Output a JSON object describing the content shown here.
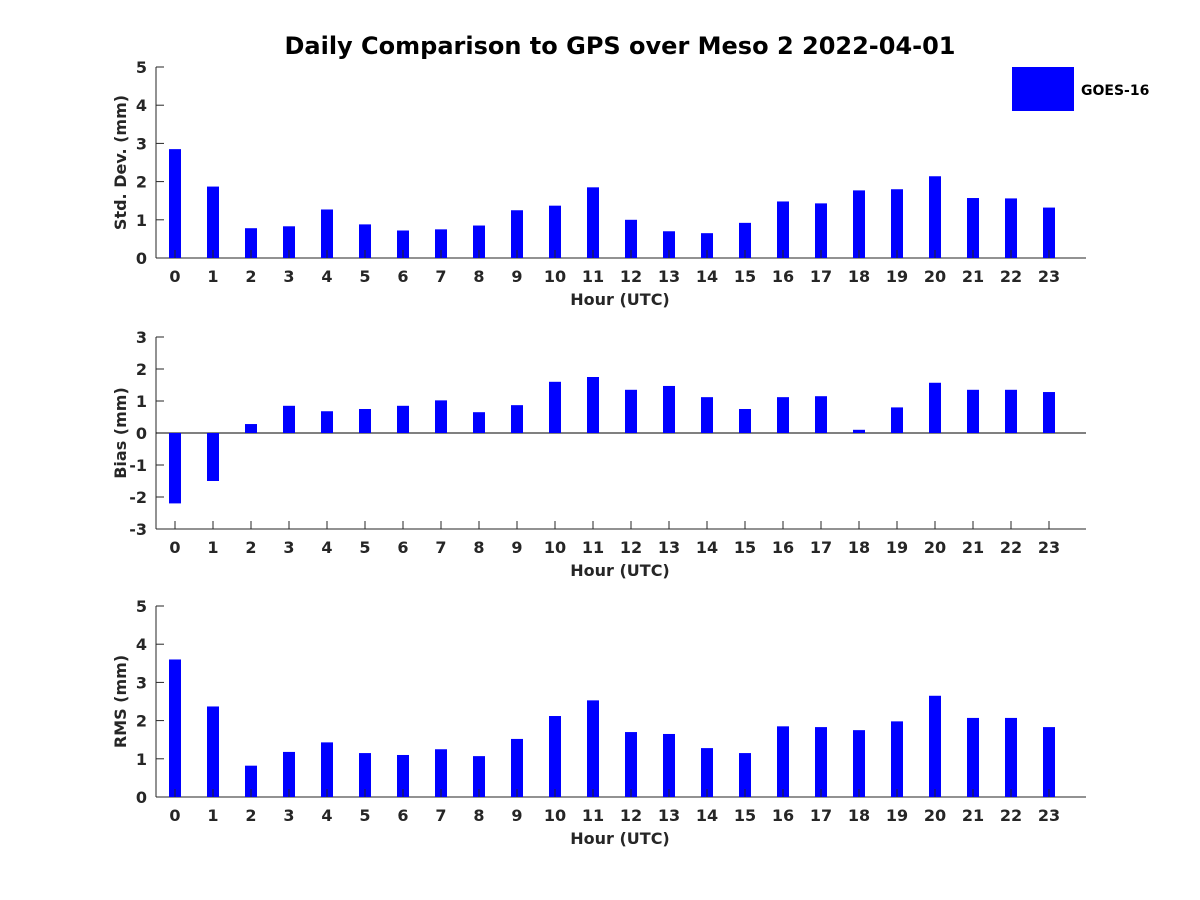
{
  "figure": {
    "title": "Daily Comparison to GPS over Meso 2 2022-04-01",
    "legend": {
      "label": "GOES-16",
      "color": "#0000ff",
      "placement": "top-right"
    },
    "bar_color": "#0000ff"
  },
  "chart_data": [
    {
      "type": "bar",
      "title": "Daily Comparison to GPS over Meso 2 2022-04-01",
      "xlabel": "Hour (UTC)",
      "ylabel": "Std. Dev. (mm)",
      "ylim": [
        0,
        5
      ],
      "yticks": [
        0,
        1,
        2,
        3,
        4,
        5
      ],
      "categories": [
        "0",
        "1",
        "2",
        "3",
        "4",
        "5",
        "6",
        "7",
        "8",
        "9",
        "10",
        "11",
        "12",
        "13",
        "14",
        "15",
        "16",
        "17",
        "18",
        "19",
        "20",
        "21",
        "22",
        "23"
      ],
      "series": [
        {
          "name": "GOES-16",
          "values": [
            2.85,
            1.87,
            0.78,
            0.83,
            1.27,
            0.88,
            0.72,
            0.75,
            0.85,
            1.25,
            1.37,
            1.85,
            1.0,
            0.7,
            0.65,
            0.92,
            1.48,
            1.43,
            1.77,
            1.8,
            2.14,
            1.57,
            1.56,
            1.32
          ]
        }
      ],
      "legend": "top-right",
      "grid": false
    },
    {
      "type": "bar",
      "xlabel": "Hour (UTC)",
      "ylabel": "Bias (mm)",
      "ylim": [
        -3,
        3
      ],
      "yticks": [
        -3,
        -2,
        -1,
        0,
        1,
        2,
        3
      ],
      "categories": [
        "0",
        "1",
        "2",
        "3",
        "4",
        "5",
        "6",
        "7",
        "8",
        "9",
        "10",
        "11",
        "12",
        "13",
        "14",
        "15",
        "16",
        "17",
        "18",
        "19",
        "20",
        "21",
        "22",
        "23"
      ],
      "series": [
        {
          "name": "GOES-16",
          "values": [
            -2.2,
            -1.5,
            0.28,
            0.85,
            0.68,
            0.75,
            0.85,
            1.02,
            0.65,
            0.87,
            1.6,
            1.75,
            1.35,
            1.47,
            1.12,
            0.75,
            1.12,
            1.15,
            0.1,
            0.8,
            1.57,
            1.35,
            1.35,
            1.28
          ]
        }
      ],
      "grid": false
    },
    {
      "type": "bar",
      "xlabel": "Hour (UTC)",
      "ylabel": "RMS (mm)",
      "ylim": [
        0,
        5
      ],
      "yticks": [
        0,
        1,
        2,
        3,
        4,
        5
      ],
      "categories": [
        "0",
        "1",
        "2",
        "3",
        "4",
        "5",
        "6",
        "7",
        "8",
        "9",
        "10",
        "11",
        "12",
        "13",
        "14",
        "15",
        "16",
        "17",
        "18",
        "19",
        "20",
        "21",
        "22",
        "23"
      ],
      "series": [
        {
          "name": "GOES-16",
          "values": [
            3.6,
            2.37,
            0.82,
            1.18,
            1.43,
            1.15,
            1.1,
            1.25,
            1.07,
            1.52,
            2.12,
            2.53,
            1.7,
            1.65,
            1.28,
            1.15,
            1.85,
            1.83,
            1.75,
            1.98,
            2.65,
            2.07,
            2.07,
            1.83
          ]
        }
      ],
      "grid": false
    }
  ]
}
